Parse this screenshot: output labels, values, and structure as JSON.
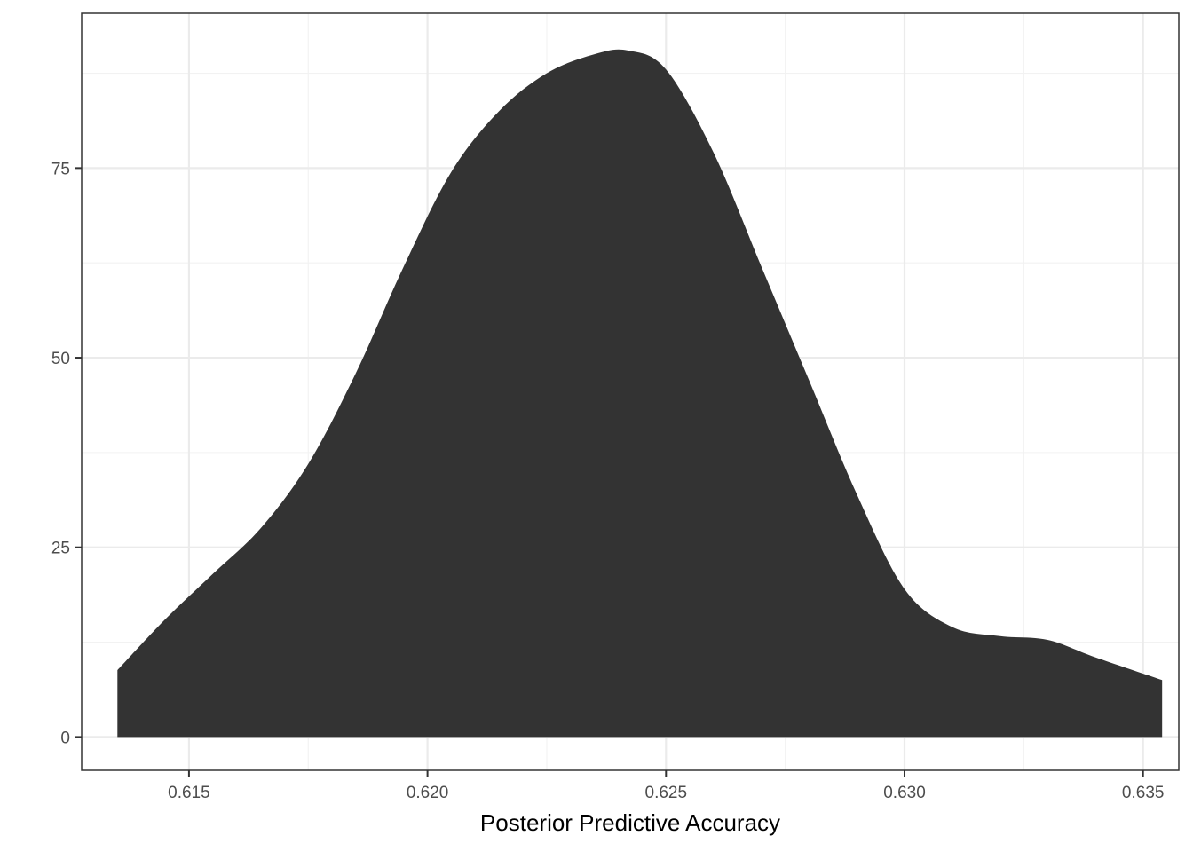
{
  "chart_data": {
    "type": "area",
    "title": "",
    "xlabel": "Posterior Predictive Accuracy",
    "ylabel": "",
    "xlim": [
      0.61275,
      0.63575
    ],
    "ylim": [
      -4.4,
      95.4
    ],
    "x_ticks": [
      0.615,
      0.62,
      0.625,
      0.63,
      0.635
    ],
    "x_tick_labels": [
      "0.615",
      "0.620",
      "0.625",
      "0.630",
      "0.635"
    ],
    "y_ticks": [
      0,
      25,
      50,
      75
    ],
    "y_tick_labels": [
      "0",
      "25",
      "50",
      "75"
    ],
    "grid": true,
    "fill_color": "#333333",
    "series": [
      {
        "x": [
          0.6135,
          0.6145,
          0.6155,
          0.6165,
          0.6175,
          0.6185,
          0.6195,
          0.6205,
          0.6215,
          0.6225,
          0.6235,
          0.6242,
          0.625,
          0.626,
          0.627,
          0.628,
          0.629,
          0.63,
          0.631,
          0.632,
          0.633,
          0.634,
          0.6354
        ],
        "y": [
          8.8,
          15.5,
          21.5,
          27.5,
          36.0,
          48.0,
          62.0,
          74.5,
          82.5,
          87.5,
          90.0,
          90.5,
          88.0,
          77.0,
          62.0,
          47.0,
          32.0,
          19.5,
          14.5,
          13.3,
          12.8,
          10.5,
          7.5
        ]
      }
    ]
  }
}
